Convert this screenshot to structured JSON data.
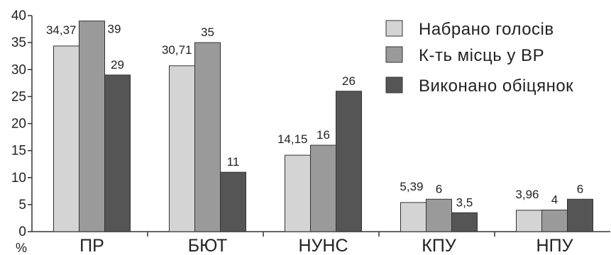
{
  "chart_data": {
    "type": "bar",
    "ylabel": "%",
    "ylim": [
      0,
      40
    ],
    "yticks": [
      0,
      5,
      10,
      15,
      20,
      25,
      30,
      35,
      40
    ],
    "categories": [
      "ПР",
      "БЮТ",
      "НУНС",
      "КПУ",
      "НПУ"
    ],
    "grid": false,
    "legend_position": "top-right",
    "series": [
      {
        "name": "Набрано голосів",
        "color": "#d4d4d4",
        "values": [
          34.37,
          30.71,
          14.15,
          5.39,
          3.96
        ],
        "labels": [
          "34,37",
          "30,71",
          "14,15",
          "5,39",
          "3,96"
        ]
      },
      {
        "name": "К-ть місць у ВР",
        "color": "#9a9a9a",
        "values": [
          39,
          35,
          16,
          6,
          4
        ],
        "labels": [
          "39",
          "35",
          "16",
          "6",
          "4"
        ]
      },
      {
        "name": "Виконано обіцянок",
        "color": "#555555",
        "values": [
          29,
          11,
          26,
          3.5,
          6
        ],
        "labels": [
          "29",
          "11",
          "26",
          "3,5",
          "6"
        ]
      }
    ]
  }
}
